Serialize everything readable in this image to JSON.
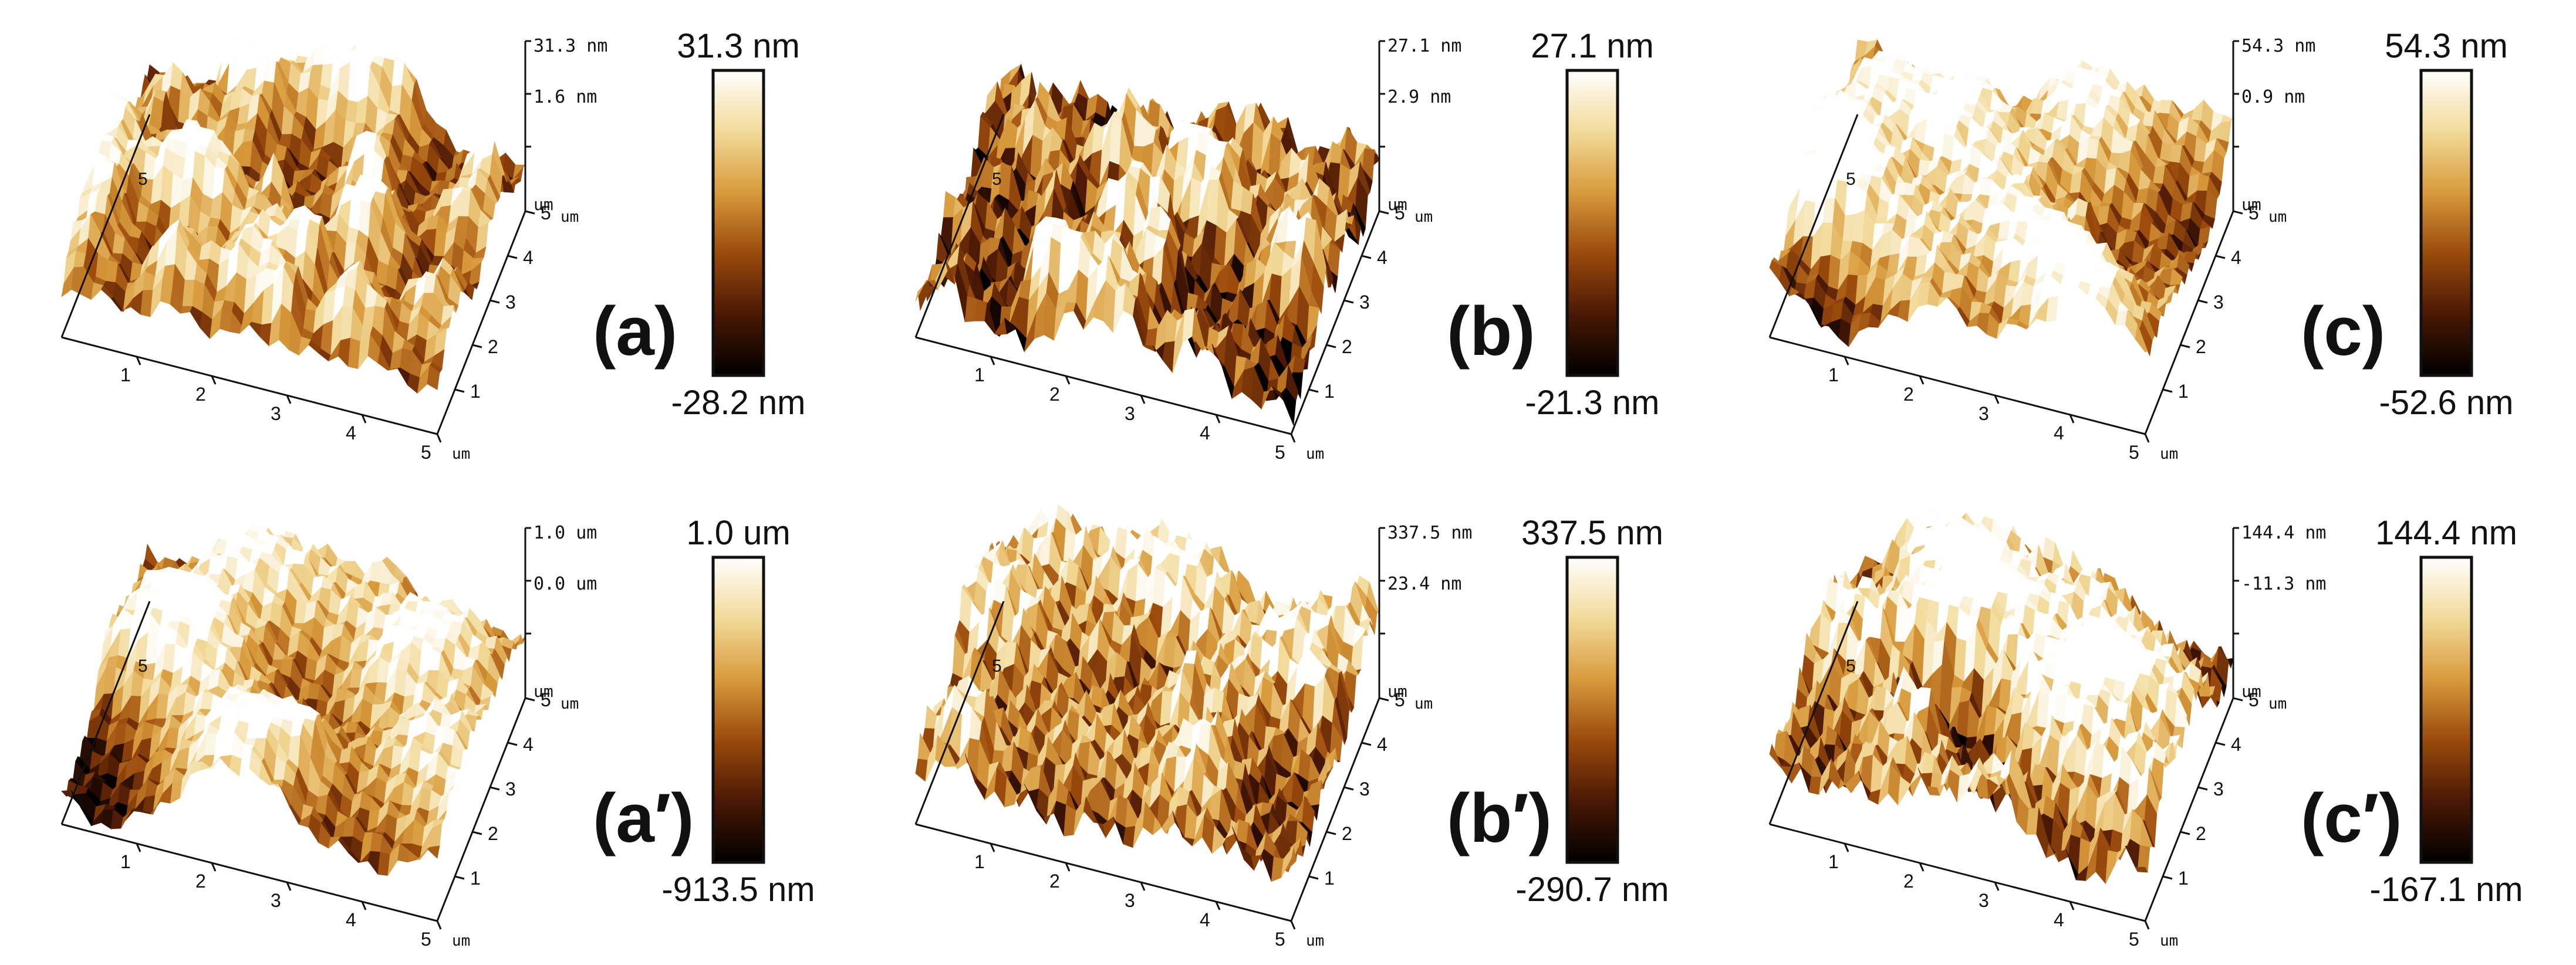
{
  "figure": {
    "panels": [
      {
        "id": "a",
        "label": "(a)",
        "colorbar": {
          "max_label": "31.3 nm",
          "min_label": "-28.2 nm"
        },
        "z_axis": {
          "top_label": "31.3 nm",
          "mid_label": "1.6 nm",
          "unit_label": "um"
        },
        "x_axis": {
          "ticks": [
            "1",
            "2",
            "3",
            "4",
            "5"
          ],
          "unit": "um"
        },
        "y_axis": {
          "ticks": [
            "1",
            "2",
            "3",
            "4",
            "5"
          ],
          "unit": "um",
          "back_label": "5"
        },
        "surface": {
          "roughness": "fine"
        }
      },
      {
        "id": "b",
        "label": "(b)",
        "colorbar": {
          "max_label": "27.1 nm",
          "min_label": "-21.3 nm"
        },
        "z_axis": {
          "top_label": "27.1 nm",
          "mid_label": "2.9 nm",
          "unit_label": "um"
        },
        "x_axis": {
          "ticks": [
            "1",
            "2",
            "3",
            "4",
            "5"
          ],
          "unit": "um"
        },
        "y_axis": {
          "ticks": [
            "1",
            "2",
            "3",
            "4",
            "5"
          ],
          "unit": "um",
          "back_label": "5"
        },
        "surface": {
          "roughness": "fine-dark"
        }
      },
      {
        "id": "c",
        "label": "(c)",
        "colorbar": {
          "max_label": "54.3 nm",
          "min_label": "-52.6 nm"
        },
        "z_axis": {
          "top_label": "54.3 nm",
          "mid_label": "0.9 nm",
          "unit_label": "um"
        },
        "x_axis": {
          "ticks": [
            "1",
            "2",
            "3",
            "4",
            "5"
          ],
          "unit": "um"
        },
        "y_axis": {
          "ticks": [
            "1",
            "2",
            "3",
            "4",
            "5"
          ],
          "unit": "um",
          "back_label": "5"
        },
        "surface": {
          "roughness": "hilly"
        }
      },
      {
        "id": "a-prime",
        "label": "(a′)",
        "colorbar": {
          "max_label": "1.0 um",
          "min_label": "-913.5 nm"
        },
        "z_axis": {
          "top_label": "1.0 um",
          "mid_label": "0.0 um",
          "unit_label": "um"
        },
        "x_axis": {
          "ticks": [
            "1",
            "2",
            "3",
            "4",
            "5"
          ],
          "unit": "um"
        },
        "y_axis": {
          "ticks": [
            "1",
            "2",
            "3",
            "4",
            "5"
          ],
          "unit": "um",
          "back_label": "5"
        },
        "surface": {
          "roughness": "ridged"
        }
      },
      {
        "id": "b-prime",
        "label": "(b′)",
        "colorbar": {
          "max_label": "337.5 nm",
          "min_label": "-290.7 nm"
        },
        "z_axis": {
          "top_label": "337.5 nm",
          "mid_label": "23.4 nm",
          "unit_label": "um"
        },
        "x_axis": {
          "ticks": [
            "1",
            "2",
            "3",
            "4",
            "5"
          ],
          "unit": "um"
        },
        "y_axis": {
          "ticks": [
            "1",
            "2",
            "3",
            "4",
            "5"
          ],
          "unit": "um",
          "back_label": "5"
        },
        "surface": {
          "roughness": "mixed"
        }
      },
      {
        "id": "c-prime",
        "label": "(c′)",
        "colorbar": {
          "max_label": "144.4 nm",
          "min_label": "-167.1 nm"
        },
        "z_axis": {
          "top_label": "144.4 nm",
          "mid_label": "-11.3 nm",
          "unit_label": "um"
        },
        "x_axis": {
          "ticks": [
            "1",
            "2",
            "3",
            "4",
            "5"
          ],
          "unit": "um"
        },
        "y_axis": {
          "ticks": [
            "1",
            "2",
            "3",
            "4",
            "5"
          ],
          "unit": "um",
          "back_label": "5"
        },
        "surface": {
          "roughness": "hilly-rough"
        }
      }
    ],
    "colormap": {
      "stops": [
        "#000000",
        "#4a1805",
        "#9a4a0c",
        "#d89a3c",
        "#f2da9a",
        "#ffffff"
      ]
    }
  }
}
